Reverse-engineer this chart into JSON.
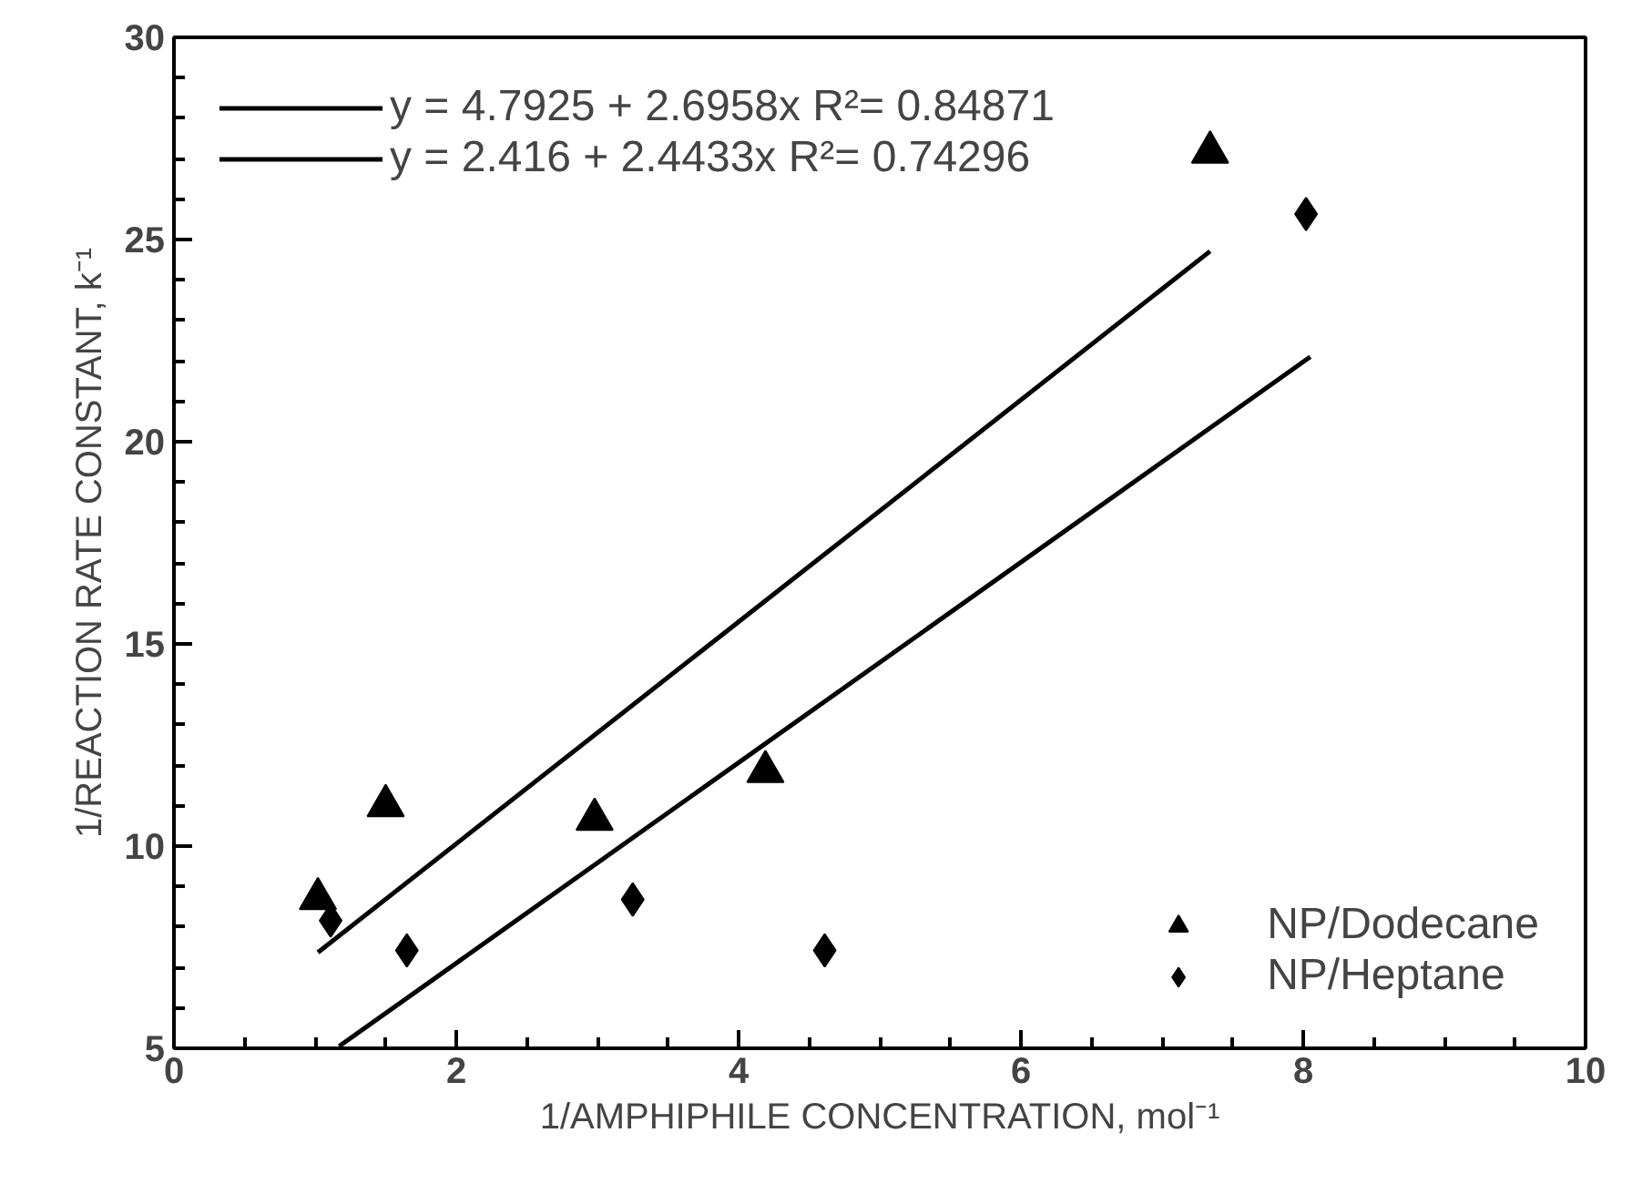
{
  "chart_data": {
    "type": "scatter",
    "xlabel": "1/AMPHIPHILE CONCENTRATION, mol⁻¹",
    "ylabel": "1/REACTION RATE CONSTANT, k⁻¹",
    "xlim": [
      0,
      10
    ],
    "ylim": [
      5,
      30
    ],
    "xticks": [
      0,
      2,
      4,
      6,
      8,
      10
    ],
    "yticks": [
      5,
      10,
      15,
      20,
      25,
      30
    ],
    "grid": false,
    "legend": "bottom right",
    "series": [
      {
        "name": "NP/Dodecane",
        "color": "#000000",
        "marker": "triangle",
        "x": [
          1.02,
          1.5,
          2.98,
          4.19,
          7.34
        ],
        "values": [
          8.7,
          11.0,
          10.66,
          11.84,
          27.16
        ]
      },
      {
        "name": "NP/Heptane",
        "color": "#000000",
        "marker": "diamond",
        "x": [
          1.11,
          1.65,
          3.25,
          4.61,
          8.02
        ],
        "values": [
          8.16,
          7.42,
          8.68,
          7.42,
          25.63
        ]
      },
      {
        "name": "y = 4.7925 + 2.6958x R²= 0.84871",
        "type": "line",
        "color": "#000000",
        "x": [
          1.02,
          7.34
        ],
        "values": [
          7.37,
          24.71
        ]
      },
      {
        "name": "y = 2.416 + 2.4433x R²= 0.74296",
        "type": "line",
        "color": "#000000",
        "x": [
          1.17,
          8.05
        ],
        "values": [
          5.05,
          22.1
        ]
      }
    ]
  }
}
